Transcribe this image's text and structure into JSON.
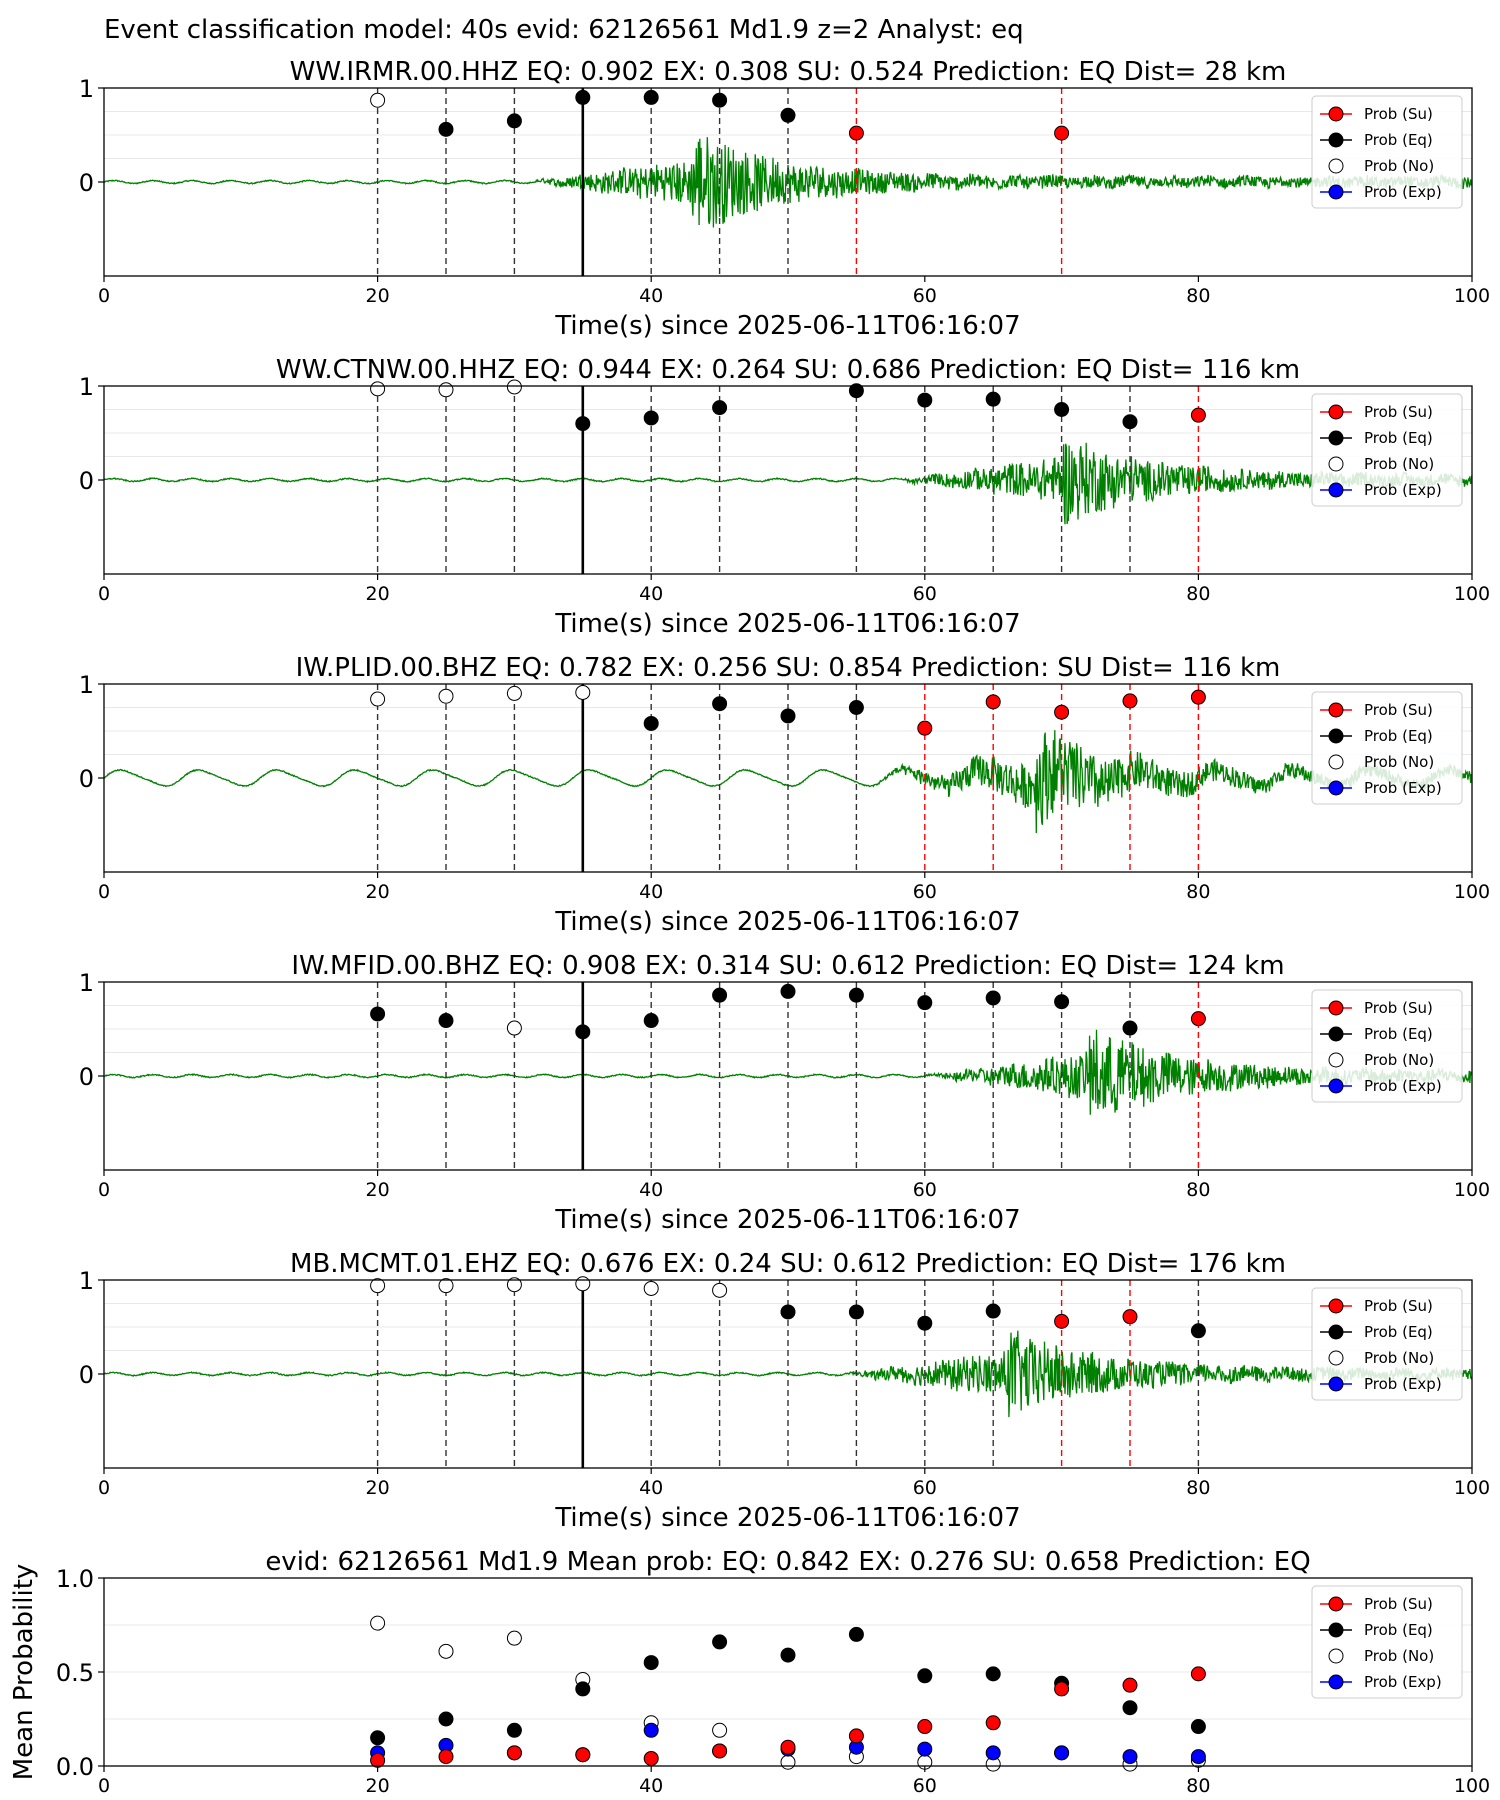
{
  "suptitle": "Event classification model: 40s evid: 62126561 Md1.9 z=2 Analyst: eq",
  "legend_labels": [
    "Prob (Su)",
    "Prob (Eq)",
    "Prob (No)",
    "Prob (Exp)"
  ],
  "colors": {
    "su": "#ff0000",
    "eq": "#000000",
    "no": "#ffffff",
    "exp": "#0000ff",
    "waveform": "#008000"
  },
  "chart_data": [
    {
      "type": "scatter",
      "title": "WW.IRMR.00.HHZ   EQ: 0.902  EX: 0.308  SU: 0.524   Prediction: EQ    Dist= 28 km",
      "xlabel": "Time(s) since 2025-06-11T06:16:07",
      "ylabel": "",
      "xlim": [
        0,
        100
      ],
      "ylim": [
        -1,
        1
      ],
      "x_ticks": [
        "0",
        "20",
        "40",
        "60",
        "80",
        "100"
      ],
      "y_ticks": [
        "1",
        "0"
      ],
      "legend": "right",
      "onset": 43,
      "amplitude": 0.55,
      "pick_line": 35,
      "points": [
        {
          "x": 20,
          "y": 0.87,
          "cls": "no"
        },
        {
          "x": 25,
          "y": 0.56,
          "cls": "eq"
        },
        {
          "x": 30,
          "y": 0.65,
          "cls": "eq"
        },
        {
          "x": 35,
          "y": 0.9,
          "cls": "eq"
        },
        {
          "x": 40,
          "y": 0.9,
          "cls": "eq"
        },
        {
          "x": 45,
          "y": 0.87,
          "cls": "eq"
        },
        {
          "x": 50,
          "y": 0.71,
          "cls": "eq"
        },
        {
          "x": 55,
          "y": 0.52,
          "cls": "su"
        },
        {
          "x": 70,
          "y": 0.52,
          "cls": "su"
        }
      ]
    },
    {
      "type": "scatter",
      "title": "WW.CTNW.00.HHZ   EQ: 0.944  EX: 0.264  SU: 0.686   Prediction: EQ    Dist= 116 km",
      "xlabel": "Time(s) since 2025-06-11T06:16:07",
      "ylabel": "",
      "xlim": [
        0,
        100
      ],
      "ylim": [
        -1,
        1
      ],
      "x_ticks": [
        "0",
        "20",
        "40",
        "60",
        "80",
        "100"
      ],
      "y_ticks": [
        "1",
        "0"
      ],
      "legend": "right",
      "onset": 70,
      "amplitude": 0.45,
      "pick_line": 35,
      "points": [
        {
          "x": 20,
          "y": 0.97,
          "cls": "no"
        },
        {
          "x": 25,
          "y": 0.96,
          "cls": "no"
        },
        {
          "x": 30,
          "y": 0.99,
          "cls": "no"
        },
        {
          "x": 35,
          "y": 0.6,
          "cls": "eq"
        },
        {
          "x": 40,
          "y": 0.66,
          "cls": "eq"
        },
        {
          "x": 45,
          "y": 0.77,
          "cls": "eq"
        },
        {
          "x": 55,
          "y": 0.95,
          "cls": "eq"
        },
        {
          "x": 60,
          "y": 0.85,
          "cls": "eq"
        },
        {
          "x": 65,
          "y": 0.86,
          "cls": "eq"
        },
        {
          "x": 70,
          "y": 0.75,
          "cls": "eq"
        },
        {
          "x": 75,
          "y": 0.62,
          "cls": "eq"
        },
        {
          "x": 80,
          "y": 0.69,
          "cls": "su"
        }
      ]
    },
    {
      "type": "scatter",
      "title": "IW.PLID.00.BHZ   EQ: 0.782  EX: 0.256  SU: 0.854   Prediction: SU    Dist= 116 km",
      "xlabel": "Time(s) since 2025-06-11T06:16:07",
      "ylabel": "",
      "xlim": [
        0,
        100
      ],
      "ylim": [
        -1,
        1
      ],
      "x_ticks": [
        "0",
        "20",
        "40",
        "60",
        "80",
        "100"
      ],
      "y_ticks": [
        "1",
        "0"
      ],
      "legend": "right",
      "onset": 68,
      "amplitude": 0.5,
      "pick_line": 35,
      "points": [
        {
          "x": 20,
          "y": 0.84,
          "cls": "no"
        },
        {
          "x": 25,
          "y": 0.87,
          "cls": "no"
        },
        {
          "x": 30,
          "y": 0.9,
          "cls": "no"
        },
        {
          "x": 35,
          "y": 0.91,
          "cls": "no"
        },
        {
          "x": 40,
          "y": 0.58,
          "cls": "eq"
        },
        {
          "x": 45,
          "y": 0.79,
          "cls": "eq"
        },
        {
          "x": 50,
          "y": 0.66,
          "cls": "eq"
        },
        {
          "x": 55,
          "y": 0.75,
          "cls": "eq"
        },
        {
          "x": 60,
          "y": 0.53,
          "cls": "su"
        },
        {
          "x": 65,
          "y": 0.81,
          "cls": "su"
        },
        {
          "x": 70,
          "y": 0.7,
          "cls": "su"
        },
        {
          "x": 75,
          "y": 0.82,
          "cls": "su"
        },
        {
          "x": 80,
          "y": 0.86,
          "cls": "su"
        }
      ]
    },
    {
      "type": "scatter",
      "title": "IW.MFID.00.BHZ   EQ: 0.908  EX: 0.314  SU: 0.612   Prediction: EQ    Dist= 124 km",
      "xlabel": "Time(s) since 2025-06-11T06:16:07",
      "ylabel": "",
      "xlim": [
        0,
        100
      ],
      "ylim": [
        -1,
        1
      ],
      "x_ticks": [
        "0",
        "20",
        "40",
        "60",
        "80",
        "100"
      ],
      "y_ticks": [
        "1",
        "0"
      ],
      "legend": "right",
      "onset": 72,
      "amplitude": 0.5,
      "pick_line": 35,
      "points": [
        {
          "x": 20,
          "y": 0.66,
          "cls": "eq"
        },
        {
          "x": 25,
          "y": 0.59,
          "cls": "eq"
        },
        {
          "x": 30,
          "y": 0.51,
          "cls": "no"
        },
        {
          "x": 35,
          "y": 0.47,
          "cls": "eq"
        },
        {
          "x": 40,
          "y": 0.59,
          "cls": "eq"
        },
        {
          "x": 45,
          "y": 0.86,
          "cls": "eq"
        },
        {
          "x": 50,
          "y": 0.9,
          "cls": "eq"
        },
        {
          "x": 55,
          "y": 0.86,
          "cls": "eq"
        },
        {
          "x": 60,
          "y": 0.78,
          "cls": "eq"
        },
        {
          "x": 65,
          "y": 0.83,
          "cls": "eq"
        },
        {
          "x": 70,
          "y": 0.79,
          "cls": "eq"
        },
        {
          "x": 75,
          "y": 0.51,
          "cls": "eq"
        },
        {
          "x": 80,
          "y": 0.61,
          "cls": "su"
        }
      ]
    },
    {
      "type": "scatter",
      "title": "MB.MCMT.01.EHZ   EQ: 0.676  EX: 0.24  SU: 0.612   Prediction: EQ    Dist= 176 km",
      "xlabel": "Time(s) since 2025-06-11T06:16:07",
      "ylabel": "",
      "xlim": [
        0,
        100
      ],
      "ylim": [
        -1,
        1
      ],
      "x_ticks": [
        "0",
        "20",
        "40",
        "60",
        "80",
        "100"
      ],
      "y_ticks": [
        "1",
        "0"
      ],
      "legend": "right",
      "onset": 66,
      "amplitude": 0.45,
      "pick_line": 35,
      "points": [
        {
          "x": 20,
          "y": 0.94,
          "cls": "no"
        },
        {
          "x": 25,
          "y": 0.94,
          "cls": "no"
        },
        {
          "x": 30,
          "y": 0.95,
          "cls": "no"
        },
        {
          "x": 35,
          "y": 0.96,
          "cls": "no"
        },
        {
          "x": 40,
          "y": 0.91,
          "cls": "no"
        },
        {
          "x": 45,
          "y": 0.89,
          "cls": "no"
        },
        {
          "x": 50,
          "y": 0.66,
          "cls": "eq"
        },
        {
          "x": 55,
          "y": 0.66,
          "cls": "eq"
        },
        {
          "x": 60,
          "y": 0.54,
          "cls": "eq"
        },
        {
          "x": 65,
          "y": 0.67,
          "cls": "eq"
        },
        {
          "x": 70,
          "y": 0.56,
          "cls": "su"
        },
        {
          "x": 75,
          "y": 0.61,
          "cls": "su"
        },
        {
          "x": 80,
          "y": 0.46,
          "cls": "eq"
        }
      ]
    },
    {
      "type": "scatter",
      "title": "evid: 62126561  Md1.9   Mean prob:   EQ: 0.842  EX: 0.276  SU: 0.658   Prediction: EQ",
      "xlabel": "",
      "ylabel": "Mean Probability",
      "xlim": [
        0,
        100
      ],
      "ylim": [
        0,
        1
      ],
      "x_ticks": [
        "0",
        "20",
        "40",
        "60",
        "80",
        "100"
      ],
      "y_ticks": [
        "1.0",
        "0.5",
        "0.0"
      ],
      "legend": "right",
      "x": [
        20,
        25,
        30,
        35,
        40,
        45,
        50,
        55,
        60,
        65,
        70,
        75,
        80
      ],
      "series": [
        {
          "cls": "no",
          "values": [
            0.76,
            0.61,
            0.68,
            0.46,
            0.23,
            0.19,
            0.02,
            0.05,
            0.02,
            0.01,
            0.07,
            0.01,
            0.03
          ]
        },
        {
          "cls": "exp",
          "values": [
            0.07,
            0.11,
            0.07,
            0.06,
            0.19,
            0.08,
            0.09,
            0.1,
            0.09,
            0.07,
            0.07,
            0.05,
            0.05
          ]
        },
        {
          "cls": "eq",
          "values": [
            0.15,
            0.25,
            0.19,
            0.41,
            0.55,
            0.66,
            0.59,
            0.7,
            0.48,
            0.49,
            0.44,
            0.31,
            0.21
          ]
        },
        {
          "cls": "su",
          "values": [
            0.03,
            0.05,
            0.07,
            0.06,
            0.04,
            0.08,
            0.1,
            0.16,
            0.21,
            0.23,
            0.41,
            0.43,
            0.49
          ]
        }
      ]
    }
  ]
}
